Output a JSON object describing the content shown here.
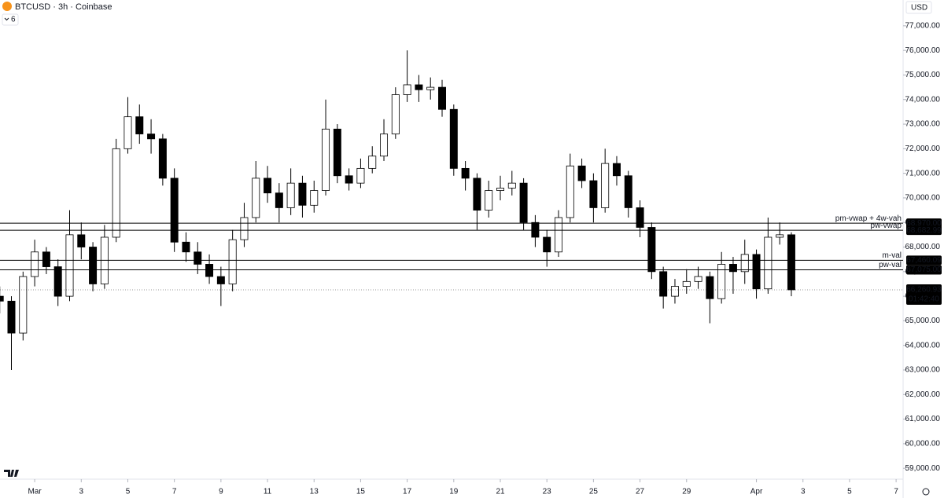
{
  "chart_data": {
    "type": "candlestick",
    "title": "BTCUSD · 3h · Coinbase",
    "indicator_count": 6,
    "currency": "USD",
    "up_color": "#ffffff",
    "down_color": "#000000",
    "wick_color": "#000000",
    "xlim": [
      -1.49,
      37.3
    ],
    "xticks": [
      {
        "value": 0,
        "label": "Mar"
      },
      {
        "value": 2,
        "label": "3"
      },
      {
        "value": 4,
        "label": "5"
      },
      {
        "value": 6,
        "label": "7"
      },
      {
        "value": 8,
        "label": "9"
      },
      {
        "value": 10,
        "label": "11"
      },
      {
        "value": 12,
        "label": "13"
      },
      {
        "value": 14,
        "label": "15"
      },
      {
        "value": 16,
        "label": "17"
      },
      {
        "value": 18,
        "label": "19"
      },
      {
        "value": 20,
        "label": "21"
      },
      {
        "value": 22,
        "label": "23"
      },
      {
        "value": 24,
        "label": "25"
      },
      {
        "value": 26,
        "label": "27"
      },
      {
        "value": 28,
        "label": "29"
      },
      {
        "value": 31,
        "label": "Apr"
      },
      {
        "value": 33,
        "label": "3"
      },
      {
        "value": 35,
        "label": "5"
      },
      {
        "value": 37,
        "label": "7"
      }
    ],
    "ylim": [
      58750,
      78050
    ],
    "yticks": [
      {
        "value": 59000,
        "label": "59,000.00"
      },
      {
        "value": 60000,
        "label": "60,000.00"
      },
      {
        "value": 61000,
        "label": "61,000.00"
      },
      {
        "value": 62000,
        "label": "62,000.00"
      },
      {
        "value": 63000,
        "label": "63,000.00"
      },
      {
        "value": 64000,
        "label": "64,000.00"
      },
      {
        "value": 65000,
        "label": "65,000.00"
      },
      {
        "value": 66000,
        "label": "66,000.00"
      },
      {
        "value": 67000,
        "label": "67,000.00"
      },
      {
        "value": 68000,
        "label": "68,000.00"
      },
      {
        "value": 69000,
        "label": "69,000.00"
      },
      {
        "value": 70000,
        "label": "70,000.00"
      },
      {
        "value": 71000,
        "label": "71,000.00"
      },
      {
        "value": 72000,
        "label": "72,000.00"
      },
      {
        "value": 73000,
        "label": "73,000.00"
      },
      {
        "value": 74000,
        "label": "74,000.00"
      },
      {
        "value": 75000,
        "label": "75,000.00"
      },
      {
        "value": 76000,
        "label": "76,000.00"
      },
      {
        "value": 77000,
        "label": "77,000.00"
      }
    ],
    "x": [
      -1.5,
      -1,
      -0.5,
      0,
      0.5,
      1,
      1.5,
      2,
      2.5,
      3,
      3.5,
      4,
      4.5,
      5,
      5.5,
      6,
      6.5,
      7,
      7.5,
      8,
      8.5,
      9,
      9.5,
      10,
      10.5,
      11,
      11.5,
      12,
      12.5,
      13,
      13.5,
      14,
      14.5,
      15,
      15.5,
      16,
      16.5,
      17,
      17.5,
      18,
      18.5,
      19,
      19.5,
      20,
      20.5,
      21,
      21.5,
      22,
      22.5,
      23,
      23.5,
      24,
      24.5,
      25,
      25.5,
      26,
      26.5,
      27,
      27.5,
      28,
      28.5,
      29,
      29.5,
      30,
      30.5,
      31,
      31.5,
      32,
      32.5
    ],
    "open": [
      66000,
      65800,
      64500,
      66800,
      67800,
      67200,
      66000,
      68500,
      68000,
      66500,
      68400,
      72000,
      73300,
      72600,
      72400,
      70800,
      68200,
      67800,
      67300,
      66800,
      66500,
      68300,
      69200,
      70800,
      70200,
      69600,
      70600,
      69700,
      70300,
      72800,
      70900,
      70600,
      71200,
      71700,
      72600,
      74200,
      74600,
      74400,
      74500,
      73600,
      71200,
      70800,
      69500,
      70300,
      70400,
      70600,
      69000,
      68400,
      67800,
      69200,
      71300,
      70700,
      69600,
      71400,
      70900,
      69600,
      68800,
      67000,
      66000,
      66400,
      66600,
      66800,
      65900,
      67300,
      67000,
      67700,
      66300,
      68400,
      68500
    ],
    "high": [
      66400,
      66000,
      67000,
      68300,
      68000,
      67500,
      69500,
      69000,
      68200,
      68900,
      72400,
      74100,
      73800,
      73200,
      72600,
      71200,
      68600,
      68200,
      67700,
      67200,
      68700,
      69800,
      71500,
      71300,
      70600,
      71200,
      70900,
      70700,
      74000,
      73000,
      71200,
      71600,
      72100,
      73200,
      74500,
      76000,
      75000,
      74900,
      74800,
      73800,
      71500,
      71000,
      70700,
      70900,
      71100,
      70800,
      69300,
      68700,
      69500,
      71800,
      71600,
      71000,
      72000,
      71700,
      71100,
      69900,
      69000,
      67200,
      66700,
      67100,
      67200,
      67000,
      67800,
      67600,
      68300,
      67900,
      69200,
      69000,
      68600
    ],
    "low": [
      65300,
      63000,
      64200,
      66400,
      66900,
      65600,
      65800,
      67500,
      66200,
      66300,
      68200,
      71800,
      72200,
      71800,
      70500,
      67800,
      67400,
      66900,
      66500,
      65600,
      66200,
      68000,
      69000,
      69800,
      69000,
      69300,
      69200,
      69400,
      70100,
      70600,
      70300,
      70400,
      71000,
      71500,
      72400,
      73900,
      73900,
      74000,
      73300,
      70900,
      70300,
      68700,
      69200,
      69900,
      70100,
      68700,
      68000,
      67200,
      67600,
      69000,
      70400,
      69000,
      69400,
      70500,
      69200,
      68400,
      66700,
      65500,
      65700,
      66100,
      66300,
      64900,
      65700,
      66100,
      66500,
      65900,
      66100,
      68100,
      66000
    ],
    "close": [
      65800,
      64500,
      66800,
      67800,
      67200,
      66000,
      68500,
      68000,
      66500,
      68400,
      72000,
      73300,
      72600,
      72400,
      70800,
      68200,
      67800,
      67300,
      66800,
      66500,
      68300,
      69200,
      70800,
      70200,
      69600,
      70600,
      69700,
      70300,
      72800,
      70900,
      70600,
      71200,
      71700,
      72600,
      74200,
      74600,
      74400,
      74500,
      73600,
      71200,
      70800,
      69500,
      70300,
      70400,
      70600,
      69000,
      68400,
      67800,
      69200,
      71300,
      70700,
      69600,
      71400,
      70900,
      69600,
      68800,
      67000,
      66000,
      66400,
      66600,
      66800,
      65900,
      67300,
      67000,
      67700,
      66300,
      68400,
      68500,
      66260.93
    ],
    "levels": [
      {
        "name": "pm-vwap + 4w-vah",
        "price": {
          "value": 68970,
          "label": "68,970.00"
        }
      },
      {
        "name": "pw-vwap",
        "price": {
          "value": 68682.99,
          "label": "68,682.99"
        }
      },
      {
        "name": "m-val",
        "price": {
          "value": 67460.09,
          "label": "67,460.09"
        }
      },
      {
        "name": "pw-val",
        "price": {
          "value": 67075,
          "label": "67,075.00"
        }
      }
    ],
    "last_price": {
      "value": 66260.93,
      "label": "66,260.93"
    },
    "countdown": "01:42:40"
  }
}
